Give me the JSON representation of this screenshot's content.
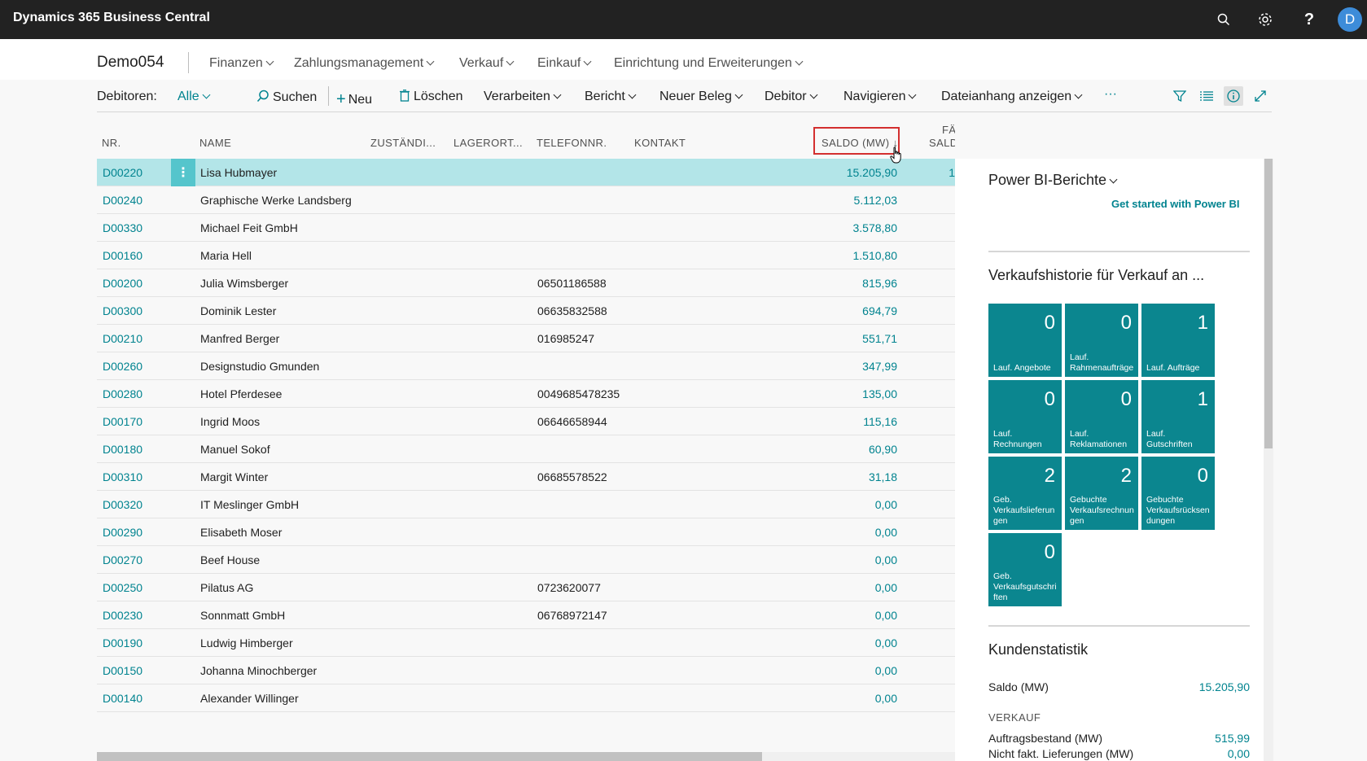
{
  "app": {
    "title": "Dynamics 365 Business Central",
    "user_initial": "D"
  },
  "nav": {
    "company": "Demo054",
    "items": [
      {
        "label": "Finanzen"
      },
      {
        "label": "Zahlungsmanagement"
      },
      {
        "label": "Verkauf"
      },
      {
        "label": "Einkauf"
      },
      {
        "label": "Einrichtung und Erweiterungen"
      }
    ]
  },
  "actionbar": {
    "list_label": "Debitoren:",
    "filter_value": "Alle",
    "search": "Suchen",
    "new": "Neu",
    "delete": "Löschen",
    "process": "Verarbeiten",
    "report": "Bericht",
    "new_document": "Neuer Beleg",
    "customer": "Debitor",
    "navigate": "Navigieren",
    "attachments": "Dateianhang anzeigen",
    "more": "···"
  },
  "table": {
    "headers": {
      "nr": "NR.",
      "name": "NAME",
      "responsible": "ZUSTÄNDI...",
      "location": "LAGERORT...",
      "phone": "TELEFONNR.",
      "contact": "KONTAKT",
      "balance": "SALDO (MW) ↓",
      "due_1": "FÄ",
      "due_2": "SALD"
    },
    "rows": [
      {
        "nr": "D00220",
        "name": "Lisa Hubmayer",
        "phone": "",
        "balance": "15.205,90",
        "extra": "1"
      },
      {
        "nr": "D00240",
        "name": "Graphische Werke Landsberg",
        "phone": "",
        "balance": "5.112,03",
        "extra": ""
      },
      {
        "nr": "D00330",
        "name": "Michael Feit GmbH",
        "phone": "",
        "balance": "3.578,80",
        "extra": ""
      },
      {
        "nr": "D00160",
        "name": "Maria Hell",
        "phone": "",
        "balance": "1.510,80",
        "extra": ""
      },
      {
        "nr": "D00200",
        "name": "Julia Wimsberger",
        "phone": "06501186588",
        "balance": "815,96",
        "extra": ""
      },
      {
        "nr": "D00300",
        "name": "Dominik Lester",
        "phone": "06635832588",
        "balance": "694,79",
        "extra": ""
      },
      {
        "nr": "D00210",
        "name": "Manfred Berger",
        "phone": "016985247",
        "balance": "551,71",
        "extra": ""
      },
      {
        "nr": "D00260",
        "name": "Designstudio Gmunden",
        "phone": "",
        "balance": "347,99",
        "extra": ""
      },
      {
        "nr": "D00280",
        "name": "Hotel Pferdesee",
        "phone": "0049685478235",
        "balance": "135,00",
        "extra": ""
      },
      {
        "nr": "D00170",
        "name": "Ingrid Moos",
        "phone": "06646658944",
        "balance": "115,16",
        "extra": ""
      },
      {
        "nr": "D00180",
        "name": "Manuel Sokof",
        "phone": "",
        "balance": "60,90",
        "extra": ""
      },
      {
        "nr": "D00310",
        "name": "Margit Winter",
        "phone": "06685578522",
        "balance": "31,18",
        "extra": ""
      },
      {
        "nr": "D00320",
        "name": "IT Meslinger GmbH",
        "phone": "",
        "balance": "0,00",
        "extra": ""
      },
      {
        "nr": "D00290",
        "name": "Elisabeth Moser",
        "phone": "",
        "balance": "0,00",
        "extra": ""
      },
      {
        "nr": "D00270",
        "name": "Beef House",
        "phone": "",
        "balance": "0,00",
        "extra": ""
      },
      {
        "nr": "D00250",
        "name": "Pilatus AG",
        "phone": "0723620077",
        "balance": "0,00",
        "extra": ""
      },
      {
        "nr": "D00230",
        "name": "Sonnmatt GmbH",
        "phone": "06768972147",
        "balance": "0,00",
        "extra": ""
      },
      {
        "nr": "D00190",
        "name": "Ludwig Himberger",
        "phone": "",
        "balance": "0,00",
        "extra": ""
      },
      {
        "nr": "D00150",
        "name": "Johanna Minochberger",
        "phone": "",
        "balance": "0,00",
        "extra": ""
      },
      {
        "nr": "D00140",
        "name": "Alexander Willinger",
        "phone": "",
        "balance": "0,00",
        "extra": ""
      }
    ]
  },
  "factbox": {
    "powerbi_title": "Power BI-Berichte",
    "powerbi_link": "Get started with Power BI",
    "history_title": "Verkaufshistorie für Verkauf an ...",
    "tiles": [
      {
        "value": "0",
        "label": "Lauf. Angebote"
      },
      {
        "value": "0",
        "label": "Lauf. Rahmenaufträge"
      },
      {
        "value": "1",
        "label": "Lauf. Aufträge"
      },
      {
        "value": "0",
        "label": "Lauf. Rechnungen"
      },
      {
        "value": "0",
        "label": "Lauf. Reklamationen"
      },
      {
        "value": "1",
        "label": "Lauf. Gutschriften"
      },
      {
        "value": "2",
        "label": "Geb. Verkaufslieferungen"
      },
      {
        "value": "2",
        "label": "Gebuchte Verkaufsrechnungen"
      },
      {
        "value": "0",
        "label": "Gebuchte Verkaufsrücksendungen"
      },
      {
        "value": "0",
        "label": "Geb. Verkaufsgutschriften"
      }
    ],
    "stats_title": "Kundenstatistik",
    "stats": {
      "balance_label": "Saldo (MW)",
      "balance_value": "15.205,90",
      "sales_head": "VERKAUF",
      "orders_label": "Auftragsbestand (MW)",
      "orders_value": "515,99",
      "shipped_label": "Nicht fakt. Lieferungen (MW)",
      "shipped_value": "0,00"
    }
  },
  "colors": {
    "accent": "#00838f",
    "tile": "#0b868f",
    "selected_row": "#b3e5e8",
    "appbar": "#222222"
  }
}
